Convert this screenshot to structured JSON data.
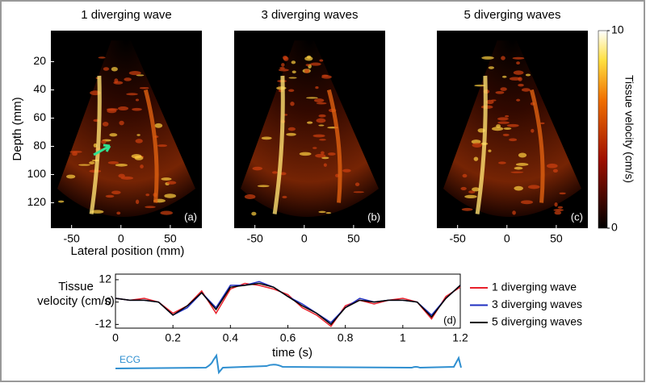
{
  "panels": [
    {
      "title": "1 diverging wave",
      "label": "(a)"
    },
    {
      "title": "3 diverging waves",
      "label": "(b)"
    },
    {
      "title": "5 diverging waves",
      "label": "(c)"
    }
  ],
  "image_axes": {
    "ylabel": "Depth (mm)",
    "xlabel": "Lateral position (mm)",
    "ylim": [
      -2,
      138
    ],
    "yticks": [
      20,
      40,
      60,
      80,
      100,
      120
    ],
    "xlim": [
      -71,
      82
    ],
    "xticks": [
      -50,
      0,
      50
    ]
  },
  "colorbar": {
    "label": "Tissue  velocity  (cm/s)",
    "lim": [
      0,
      10
    ],
    "ticks": [
      0,
      10
    ]
  },
  "ecg_label": "ECG",
  "chart_data": {
    "type": "line",
    "ylabel": [
      "Tissue",
      "velocity (cm/s)"
    ],
    "xlabel": "time (s)",
    "annotation": "(d)",
    "xlim": [
      0,
      1.2
    ],
    "xticks": [
      0,
      0.2,
      0.4,
      0.6,
      0.8,
      1,
      1.2
    ],
    "ylim": [
      -14,
      15
    ],
    "yticks": [
      -12,
      0,
      12
    ],
    "x": [
      0,
      0.05,
      0.1,
      0.15,
      0.2,
      0.25,
      0.3,
      0.35,
      0.4,
      0.45,
      0.5,
      0.55,
      0.6,
      0.65,
      0.7,
      0.75,
      0.8,
      0.85,
      0.9,
      0.95,
      1,
      1.05,
      1.1,
      1.15,
      1.2
    ],
    "series": [
      {
        "name": "1 diverging wave",
        "color": "#e8202a",
        "values": [
          2,
          1,
          2,
          0,
          -6,
          -2,
          6,
          -6,
          7,
          10,
          9,
          7,
          4,
          -3,
          -7,
          -13,
          -2,
          1,
          -1,
          1,
          2,
          0,
          -9,
          3,
          8
        ]
      },
      {
        "name": "3 diverging waves",
        "color": "#1f2fc0",
        "values": [
          2,
          1,
          1,
          0,
          -7,
          -3,
          5,
          -3,
          9,
          9,
          11,
          8,
          3,
          -1,
          -6,
          -11,
          -3,
          2,
          0,
          1,
          1,
          0,
          -7,
          2,
          9
        ]
      },
      {
        "name": "5 diverging waves",
        "color": "#000000",
        "values": [
          2,
          1,
          1,
          0,
          -7,
          -2,
          5,
          -4,
          8,
          9,
          10,
          8,
          3,
          -2,
          -6,
          -12,
          -3,
          1,
          0,
          1,
          1,
          0,
          -8,
          2,
          9
        ]
      }
    ]
  }
}
